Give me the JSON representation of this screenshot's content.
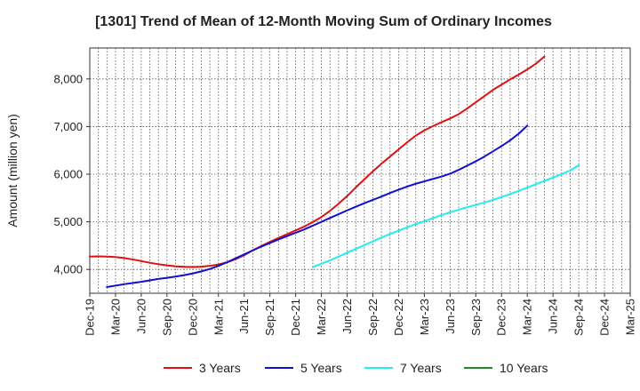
{
  "chart_data": {
    "type": "line",
    "title": "[1301]  Trend of Mean of 12-Month Moving Sum of Ordinary Incomes",
    "xlabel": "",
    "ylabel": "Amount (million yen)",
    "x_tick_labels": [
      "Dec-19",
      "Mar-20",
      "Jun-20",
      "Sep-20",
      "Dec-20",
      "Mar-21",
      "Jun-21",
      "Sep-21",
      "Dec-21",
      "Mar-22",
      "Jun-22",
      "Sep-22",
      "Dec-22",
      "Mar-23",
      "Jun-23",
      "Sep-23",
      "Dec-23",
      "Mar-24",
      "Jun-24",
      "Sep-24",
      "Dec-24",
      "Mar-25"
    ],
    "y_ticks": [
      4000,
      5000,
      6000,
      7000,
      8000
    ],
    "y_tick_labels": [
      "4,000",
      "5,000",
      "6,000",
      "7,000",
      "8,000"
    ],
    "ylim": [
      3500,
      8650
    ],
    "grid": true,
    "legend_position": "bottom",
    "series": [
      {
        "name": "3 Years",
        "color": "#dd1111",
        "start_index": 0,
        "values": [
          4270,
          4275,
          4270,
          4260,
          4240,
          4210,
          4175,
          4140,
          4110,
          4085,
          4065,
          4055,
          4050,
          4058,
          4075,
          4105,
          4150,
          4215,
          4300,
          4400,
          4490,
          4580,
          4660,
          4740,
          4820,
          4900,
          4995,
          5100,
          5230,
          5380,
          5540,
          5720,
          5890,
          6060,
          6220,
          6370,
          6520,
          6670,
          6810,
          6920,
          7010,
          7090,
          7170,
          7260,
          7380,
          7510,
          7640,
          7770,
          7880,
          7990,
          8090,
          8200,
          8320,
          8470
        ]
      },
      {
        "name": "5 Years",
        "color": "#1111cc",
        "start_index": 2,
        "values": [
          3630,
          3660,
          3690,
          3715,
          3740,
          3770,
          3800,
          3825,
          3850,
          3880,
          3915,
          3960,
          4010,
          4075,
          4150,
          4235,
          4315,
          4400,
          4480,
          4555,
          4630,
          4700,
          4770,
          4840,
          4920,
          5000,
          5080,
          5160,
          5240,
          5315,
          5390,
          5460,
          5530,
          5605,
          5675,
          5740,
          5800,
          5850,
          5900,
          5950,
          6010,
          6090,
          6180,
          6270,
          6370,
          6480,
          6590,
          6710,
          6850,
          7020
        ]
      },
      {
        "name": "7 Years",
        "color": "#22eeee",
        "start_index": 26,
        "values": [
          4050,
          4120,
          4190,
          4270,
          4350,
          4430,
          4510,
          4590,
          4670,
          4745,
          4815,
          4885,
          4950,
          5015,
          5075,
          5140,
          5200,
          5255,
          5305,
          5355,
          5405,
          5460,
          5520,
          5585,
          5650,
          5720,
          5790,
          5860,
          5930,
          6000,
          6080,
          6190
        ]
      },
      {
        "name": "10 Years",
        "color": "#228822",
        "start_index": 0,
        "values": []
      }
    ]
  }
}
